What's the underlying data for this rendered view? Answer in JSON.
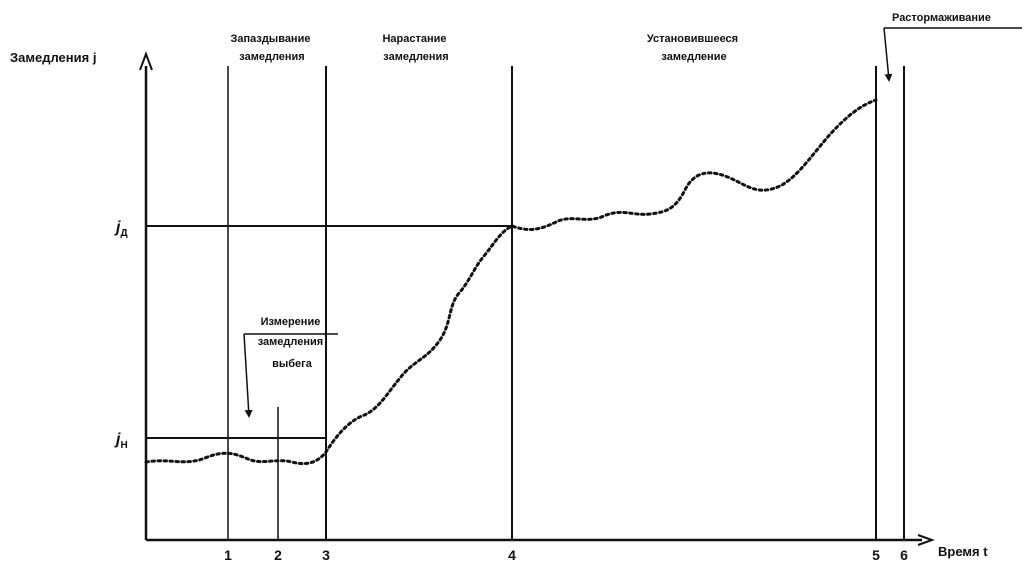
{
  "y_axis_label": "Замедления j",
  "x_axis_label": "Время t",
  "levels": {
    "jn": {
      "letter": "j",
      "sub": "Н"
    },
    "jd": {
      "letter": "j",
      "sub": "Д"
    }
  },
  "time_marks": [
    "1",
    "2",
    "3",
    "4",
    "5",
    "6"
  ],
  "phases": {
    "onset": [
      "Запаздывание",
      "замедления"
    ],
    "rise": [
      "Нарастание",
      "замедления"
    ],
    "steady": [
      "Установившееся",
      "замедление"
    ],
    "release": [
      "Растормаживание"
    ]
  },
  "measurement_label": [
    "Измерение",
    "замедления",
    "выбега"
  ],
  "curve_style": "dotted",
  "colors": {
    "line": "#111111",
    "background": "#ffffff"
  }
}
